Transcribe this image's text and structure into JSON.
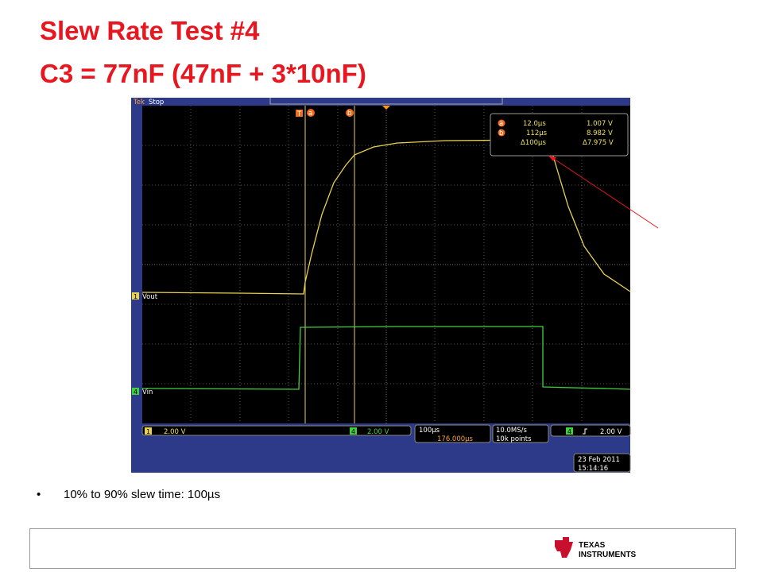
{
  "title": [
    "Slew Rate Test #4",
    "C3 = 77nF (47nF + 3*10nF)"
  ],
  "scope": {
    "brand": "Tek",
    "status": "Stop",
    "trigger_marker": "T",
    "cursor_labels": [
      "a",
      "b"
    ],
    "readout": [
      {
        "marker": "a",
        "time": "12.0µs",
        "value": "1.007 V"
      },
      {
        "marker": "b",
        "time": "112µs",
        "value": "8.982 V"
      },
      {
        "time": "Δ100µs",
        "value": "Δ7.975 V"
      }
    ],
    "channels": [
      {
        "number": "1",
        "label": "Vout",
        "scale": "2.00 V"
      },
      {
        "number": "4",
        "label": "Vin",
        "scale": "2.00 V"
      }
    ],
    "timebase": "100µs",
    "trigger_position": "176.000µs",
    "sample_rate": "10.0MS/s",
    "record_length": "10k points",
    "trigger": {
      "channel": "4",
      "level": "2.00 V"
    },
    "date": "23 Feb 2011",
    "time": "15:14:16"
  },
  "bullets": [
    "10% to 90% slew time: 100µs"
  ],
  "logo": [
    "TEXAS",
    "INSTRUMENTS"
  ]
}
